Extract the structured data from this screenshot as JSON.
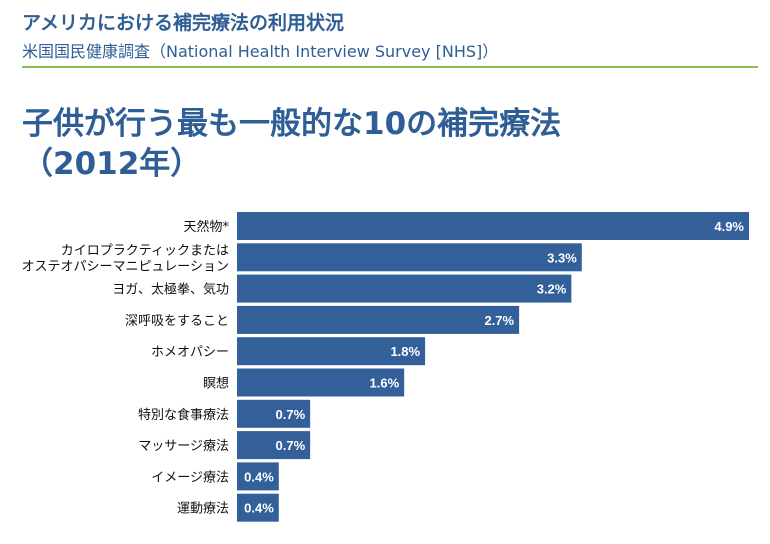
{
  "header": {
    "title": "アメリカにおける補完療法の利用状況",
    "subtitle": "米国国民健康調査（National Health Interview Survey [NHS]）"
  },
  "main_title": {
    "line1": "子供が行う最も一般的な10の補完療法",
    "line2": "（2012年）"
  },
  "colors": {
    "bar": "#34609a",
    "title": "#2e5e95",
    "rule": "#8cbc55"
  },
  "chart_data": {
    "type": "bar",
    "orientation": "horizontal",
    "title": "子供が行う最も一般的な10の補完療法（2012年）",
    "unit": "%",
    "categories": [
      [
        "天然物*"
      ],
      [
        "カイロプラクティックまたは",
        "オステオパシーマニピュレーション"
      ],
      [
        "ヨガ、太極拳、気功"
      ],
      [
        "深呼吸をすること"
      ],
      [
        "ホメオパシー"
      ],
      [
        "瞑想"
      ],
      [
        "特別な食事療法"
      ],
      [
        "マッサージ療法"
      ],
      [
        "イメージ療法"
      ],
      [
        "運動療法"
      ]
    ],
    "values": [
      4.9,
      3.3,
      3.2,
      2.7,
      1.8,
      1.6,
      0.7,
      0.7,
      0.4,
      0.4
    ],
    "value_labels": [
      "4.9%",
      "3.3%",
      "3.2%",
      "2.7%",
      "1.8%",
      "1.6%",
      "0.7%",
      "0.7%",
      "0.4%",
      "0.4%"
    ],
    "xlim": [
      0,
      4.9
    ]
  }
}
